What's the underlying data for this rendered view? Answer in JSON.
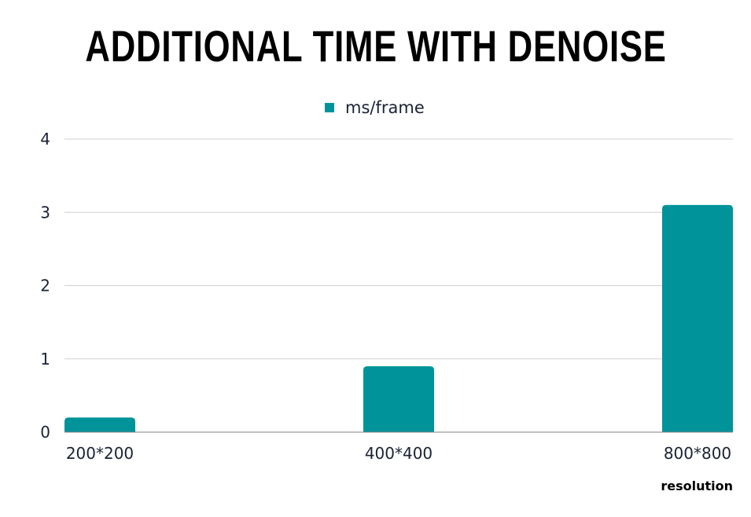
{
  "chart_data": {
    "type": "bar",
    "title": "ADDITIONAL TIME WITH DENOISE",
    "xlabel": "resolution",
    "ylabel": "",
    "categories": [
      "200*200",
      "400*400",
      "800*800"
    ],
    "series": [
      {
        "name": "ms/frame",
        "values": [
          0.2,
          0.9,
          3.1
        ]
      }
    ],
    "ylim": [
      0,
      4
    ],
    "yticks": [
      0,
      1,
      2,
      3,
      4
    ],
    "grid": true,
    "legend_position": "top-center",
    "colors": {
      "bar": "#00939a",
      "grid": "#d0d0d0",
      "axis": "#808080"
    }
  }
}
